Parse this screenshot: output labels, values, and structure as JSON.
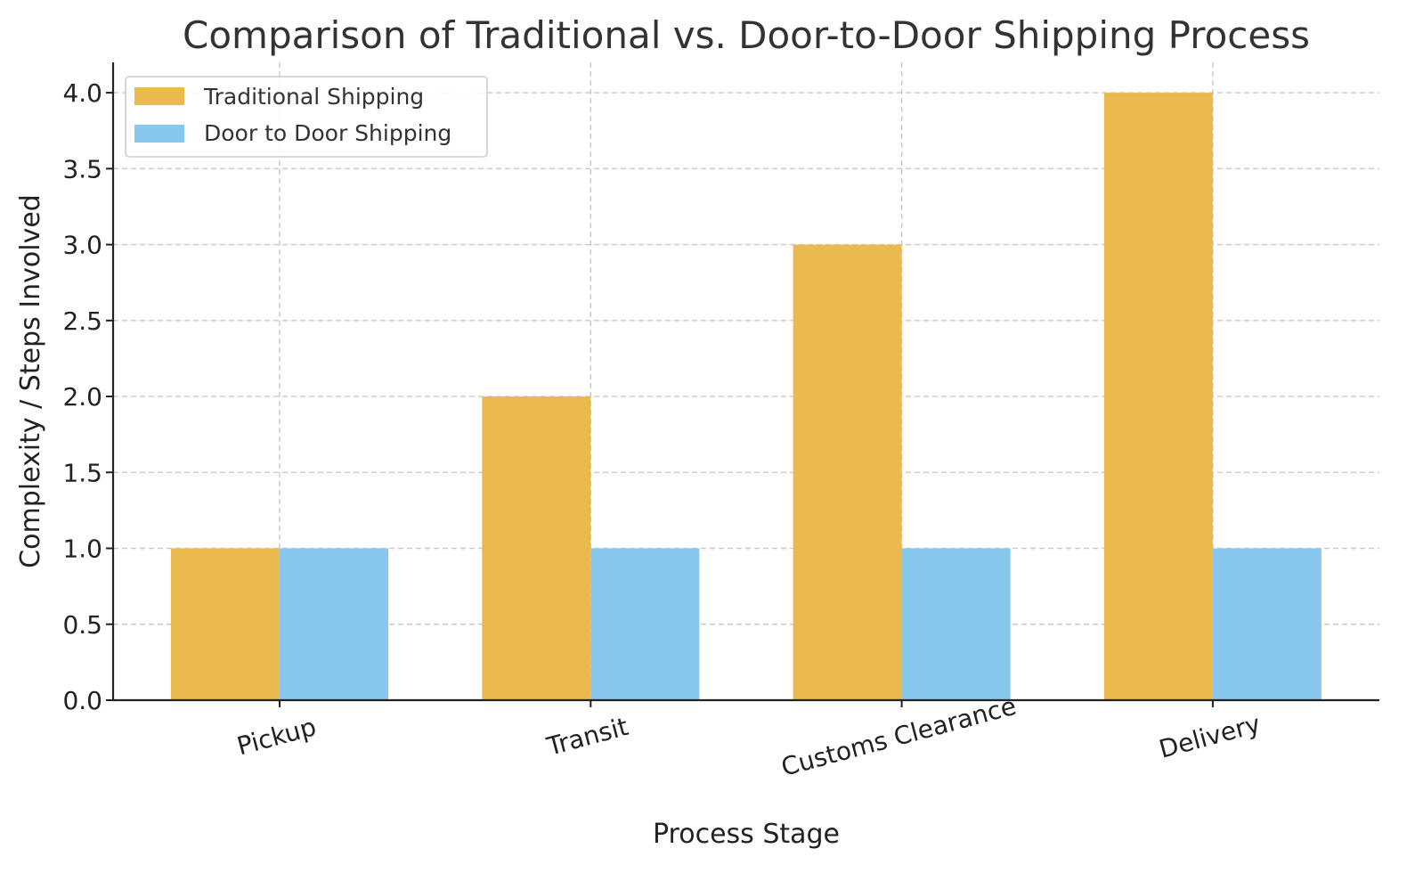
{
  "chart_data": {
    "type": "bar",
    "title": "Comparison of Traditional vs. Door-to-Door Shipping Process",
    "xlabel": "Process Stage",
    "ylabel": "Complexity / Steps Involved",
    "categories": [
      "Pickup",
      "Transit",
      "Customs Clearance",
      "Delivery"
    ],
    "series": [
      {
        "name": "Traditional Shipping",
        "color": "#EBBA4E",
        "values": [
          1,
          2,
          3,
          4
        ]
      },
      {
        "name": "Door to Door Shipping",
        "color": "#89C8EE",
        "values": [
          1,
          1,
          1,
          1
        ]
      }
    ],
    "ylim": [
      0,
      4.2
    ],
    "yticks": [
      "0.0",
      "0.5",
      "1.0",
      "1.5",
      "2.0",
      "2.5",
      "3.0",
      "3.5",
      "4.0"
    ],
    "grid": true,
    "legend_position": "top-left"
  }
}
